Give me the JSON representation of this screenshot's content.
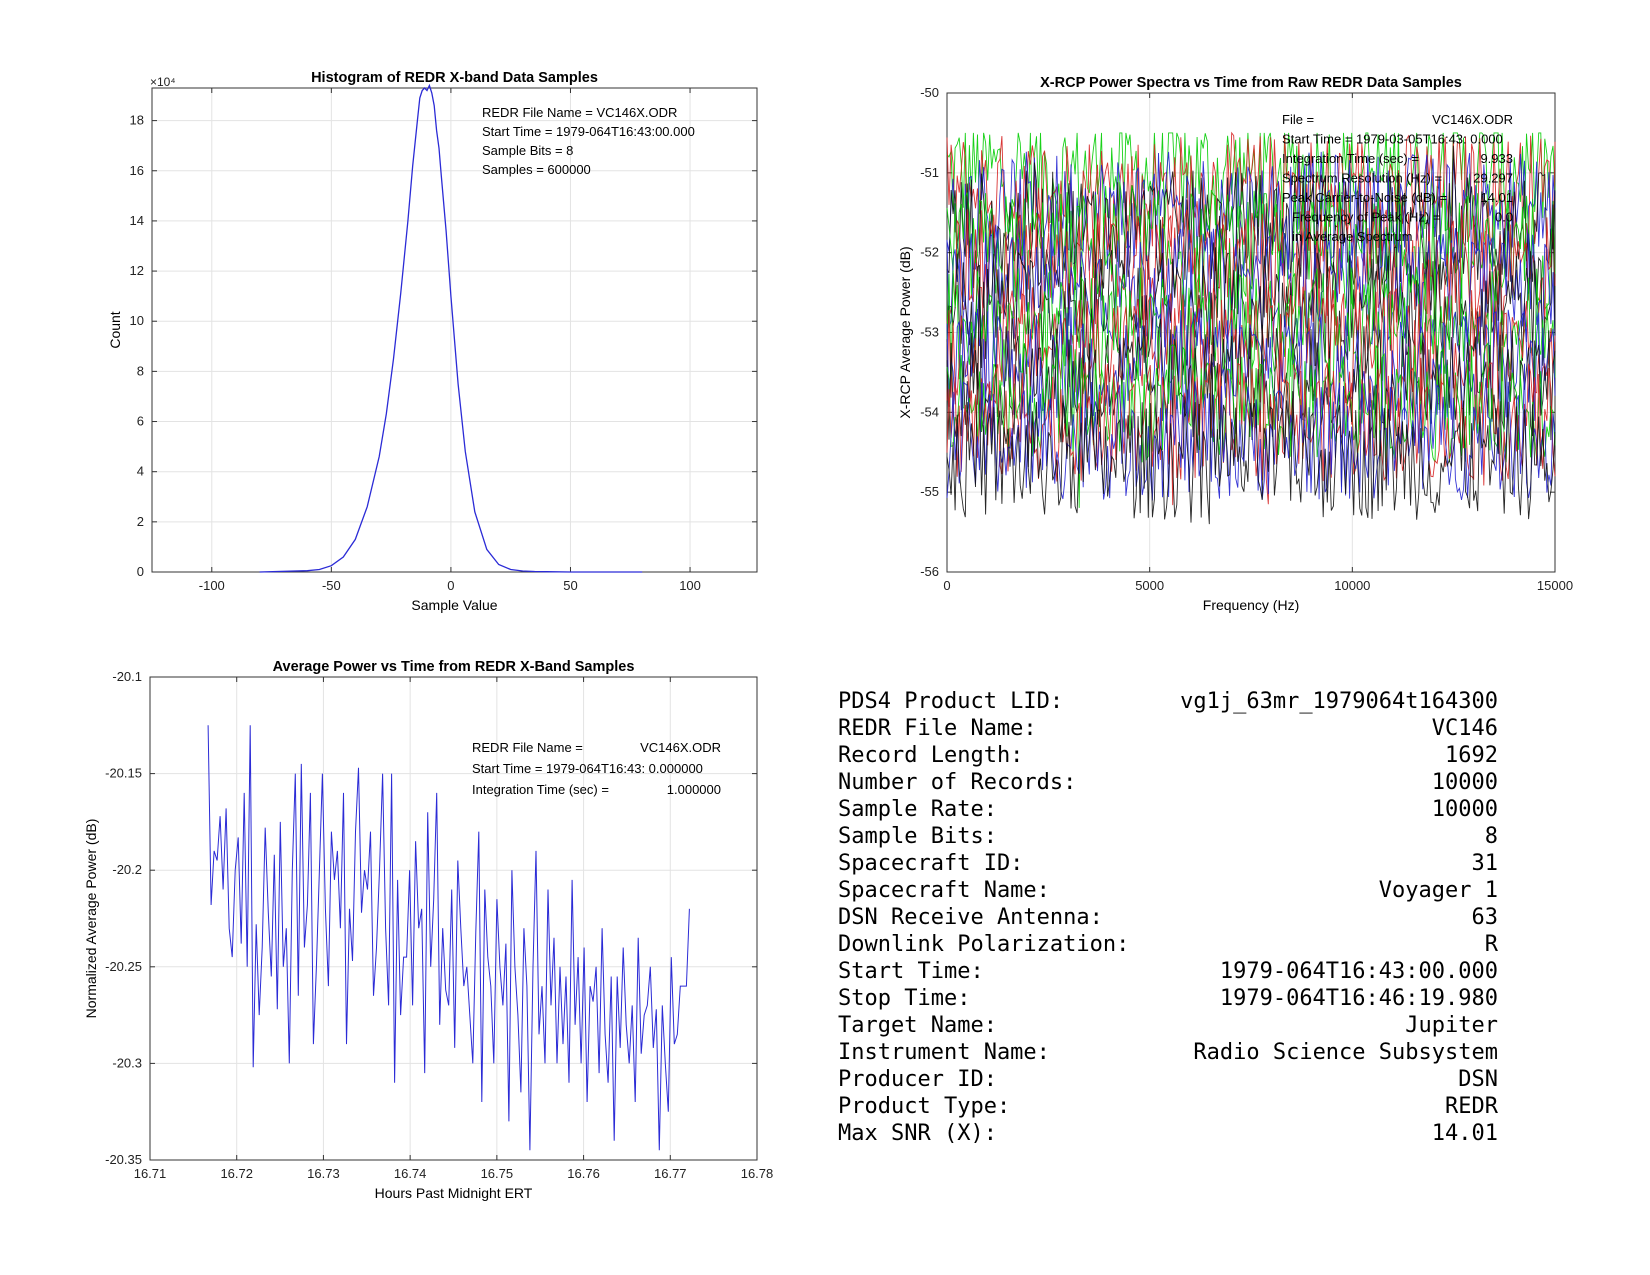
{
  "chart_data": [
    {
      "id": "histogram",
      "type": "line",
      "title": "Histogram of REDR X-band Data Samples",
      "xlabel": "Sample Value",
      "ylabel": "Count",
      "y_exponent_label": "×10⁴",
      "xlim": [
        -125,
        128
      ],
      "ylim": [
        0,
        19.3
      ],
      "xticks": [
        -100,
        -50,
        0,
        50,
        100
      ],
      "yticks": [
        0,
        2,
        4,
        6,
        8,
        10,
        12,
        14,
        16,
        18
      ],
      "grid": true,
      "color": "#2b2bd6",
      "x": [
        -80,
        -60,
        -55,
        -50,
        -45,
        -40,
        -35,
        -30,
        -27,
        -24,
        -21,
        -18,
        -16,
        -14,
        -13,
        -12,
        -11,
        -10,
        -9,
        -8,
        -7,
        -6,
        -5,
        -4,
        -2,
        0,
        3,
        6,
        10,
        15,
        20,
        25,
        30,
        35,
        40,
        50,
        60,
        80
      ],
      "y": [
        0,
        0.05,
        0.1,
        0.25,
        0.6,
        1.3,
        2.6,
        4.6,
        6.3,
        8.5,
        11.1,
        14.0,
        16.2,
        18.0,
        18.9,
        19.2,
        19.3,
        19.2,
        19.4,
        19.1,
        18.6,
        17.6,
        16.9,
        15.8,
        13.6,
        11.0,
        7.5,
        4.8,
        2.4,
        0.9,
        0.3,
        0.1,
        0.04,
        0.02,
        0.01,
        0,
        0,
        0
      ],
      "annotations": [
        "REDR File Name = VC146X.ODR",
        "Start Time = 1979-064T16:43:00.000",
        "Sample Bits = 8",
        "Samples = 600000"
      ]
    },
    {
      "id": "power-spectra",
      "type": "line",
      "title": "X-RCP Power Spectra vs Time from Raw REDR Data Samples",
      "xlabel": "Frequency (Hz)",
      "ylabel": "X-RCP Average Power (dB)",
      "xlim": [
        0,
        15000
      ],
      "ylim": [
        -56,
        -50
      ],
      "xticks": [
        0,
        5000,
        10000,
        15000
      ],
      "yticks": [
        -56,
        -55,
        -54,
        -53,
        -52,
        -51,
        -50
      ],
      "grid": true,
      "series_colors": [
        "#00cc00",
        "#d62020",
        "#2020d0",
        "#101010"
      ],
      "series_count": 16,
      "points_per_series": 300,
      "band_top_db": -51.0,
      "band_bottom_db": -54.6,
      "annotations": [
        {
          "key": "File =",
          "value": "VC146X.ODR"
        },
        {
          "key": "Start Time = 1979-03-05T16:43: 0.000",
          "value": ""
        },
        {
          "key": "Integration Time (sec) =",
          "value": "9.933"
        },
        {
          "key": "Spectrum Resolution (Hz) =",
          "value": "29.297"
        },
        {
          "key": "Peak Carrier-to-Noise (dB) =",
          "value": "14.01"
        },
        {
          "key": "Frequency of Peak (Hz) =",
          "value": "0.0"
        },
        {
          "key": "in Average Spectrum",
          "value": ""
        }
      ]
    },
    {
      "id": "average-power",
      "type": "line",
      "title": "Average Power vs Time from REDR X-Band Samples",
      "xlabel": "Hours Past Midnight ERT",
      "ylabel": "Normalized Average Power (dB)",
      "xlim": [
        16.71,
        16.78
      ],
      "ylim": [
        -20.35,
        -20.1
      ],
      "xticks": [
        16.71,
        16.72,
        16.73,
        16.74,
        16.75,
        16.76,
        16.77,
        16.78
      ],
      "xtick_labels": [
        "16.71",
        "16.72",
        "16.73",
        "16.74",
        "16.75",
        "16.76",
        "16.77",
        "16.78"
      ],
      "yticks": [
        -20.35,
        -20.3,
        -20.25,
        -20.2,
        -20.15,
        -20.1
      ],
      "ytick_labels": [
        "-20.35",
        "-20.3",
        "-20.25",
        "-20.2",
        "-20.15",
        "-20.1"
      ],
      "grid": true,
      "color": "#2b2bd6",
      "x_start": 16.7167,
      "x_end": 16.7722,
      "y": [
        -20.125,
        -20.218,
        -20.19,
        -20.195,
        -20.172,
        -20.21,
        -20.168,
        -20.23,
        -20.245,
        -20.2,
        -20.183,
        -20.238,
        -20.16,
        -20.25,
        -20.125,
        -20.302,
        -20.228,
        -20.275,
        -20.24,
        -20.178,
        -20.222,
        -20.255,
        -20.192,
        -20.272,
        -20.175,
        -20.25,
        -20.23,
        -20.3,
        -20.2,
        -20.15,
        -20.265,
        -20.145,
        -20.24,
        -20.218,
        -20.16,
        -20.29,
        -20.25,
        -20.2,
        -20.15,
        -20.22,
        -20.26,
        -20.18,
        -20.205,
        -20.19,
        -20.23,
        -20.16,
        -20.29,
        -20.22,
        -20.247,
        -20.18,
        -20.147,
        -20.222,
        -20.2,
        -20.21,
        -20.18,
        -20.265,
        -20.24,
        -20.2,
        -20.15,
        -20.23,
        -20.27,
        -20.15,
        -20.31,
        -20.205,
        -20.275,
        -20.245,
        -20.245,
        -20.2,
        -20.27,
        -20.185,
        -20.23,
        -20.22,
        -20.305,
        -20.17,
        -20.25,
        -20.215,
        -20.16,
        -20.28,
        -20.23,
        -20.262,
        -20.27,
        -20.21,
        -20.292,
        -20.195,
        -20.23,
        -20.26,
        -20.25,
        -20.275,
        -20.3,
        -20.232,
        -20.18,
        -20.32,
        -20.21,
        -20.245,
        -20.26,
        -20.3,
        -20.215,
        -20.25,
        -20.27,
        -20.238,
        -20.33,
        -20.2,
        -20.25,
        -20.275,
        -20.315,
        -20.23,
        -20.26,
        -20.345,
        -20.25,
        -20.19,
        -20.285,
        -20.26,
        -20.3,
        -20.21,
        -20.27,
        -20.235,
        -20.3,
        -20.25,
        -20.29,
        -20.255,
        -20.31,
        -20.205,
        -20.28,
        -20.245,
        -20.3,
        -20.24,
        -20.32,
        -20.26,
        -20.268,
        -20.25,
        -20.305,
        -20.23,
        -20.285,
        -20.31,
        -20.255,
        -20.34,
        -20.255,
        -20.292,
        -20.24,
        -20.28,
        -20.3,
        -20.27,
        -20.32,
        -20.235,
        -20.295,
        -20.275,
        -20.27,
        -20.25,
        -20.292,
        -20.272,
        -20.345,
        -20.27,
        -20.3,
        -20.325,
        -20.245,
        -20.29,
        -20.285,
        -20.26,
        -20.26,
        -20.26,
        -20.22
      ],
      "annotations": [
        {
          "key": "REDR File Name =",
          "value": "VC146X.ODR"
        },
        {
          "key": "Start Time = 1979-064T16:43: 0.000000",
          "value": ""
        },
        {
          "key": "Integration Time (sec) =",
          "value": "1.000000"
        }
      ]
    }
  ],
  "label_table": [
    {
      "key": "PDS4 Product LID:",
      "value": "vg1j_63mr_1979064t164300"
    },
    {
      "key": "REDR File Name:",
      "value": "VC146"
    },
    {
      "key": "Record Length:",
      "value": "1692"
    },
    {
      "key": "Number of Records:",
      "value": "10000"
    },
    {
      "key": "Sample Rate:",
      "value": "10000"
    },
    {
      "key": "Sample Bits:",
      "value": "8"
    },
    {
      "key": "Spacecraft ID:",
      "value": "31"
    },
    {
      "key": "Spacecraft Name:",
      "value": "Voyager 1"
    },
    {
      "key": "DSN Receive Antenna:",
      "value": "63"
    },
    {
      "key": "Downlink Polarization:",
      "value": "R"
    },
    {
      "key": "Start Time:",
      "value": "1979-064T16:43:00.000"
    },
    {
      "key": "Stop Time:",
      "value": "1979-064T16:46:19.980"
    },
    {
      "key": "Target Name:",
      "value": "Jupiter"
    },
    {
      "key": "Instrument Name:",
      "value": "Radio Science Subsystem"
    },
    {
      "key": "Producer ID:",
      "value": "DSN"
    },
    {
      "key": "Product Type:",
      "value": "REDR"
    },
    {
      "key": "Max SNR (X):",
      "value": "14.01"
    }
  ]
}
